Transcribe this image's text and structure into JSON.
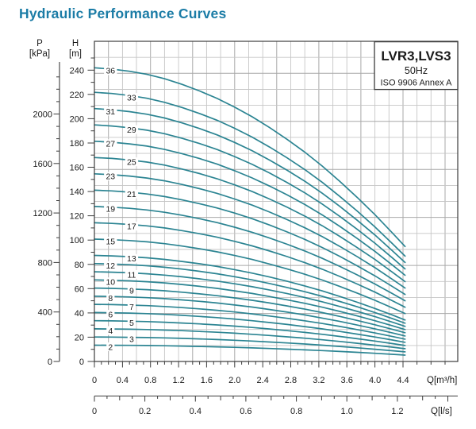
{
  "page": {
    "title": "Hydraulic Performance Curves"
  },
  "colors": {
    "title": "#1b7ca6",
    "curve": "#2b8492",
    "grid": "#c6c6c6",
    "grid_dark": "#a8a8a8",
    "axis": "#3c3c3c",
    "text": "#1a1a1a",
    "label_bg": "#ffffff"
  },
  "legend": {
    "model": "LVR3,LVS3",
    "frequency": "50Hz",
    "standard": "ISO 9906 Annex A"
  },
  "axes": {
    "pressure": {
      "label": "P",
      "unit": "[kPa]",
      "tick_labels": [
        0,
        400,
        800,
        1200,
        1600,
        2000
      ],
      "minor_step": 100,
      "minor_max": 2400
    },
    "head": {
      "label": "H",
      "unit": "[m]",
      "tick_labels": [
        0,
        20,
        40,
        60,
        80,
        100,
        120,
        140,
        160,
        180,
        200,
        220,
        240
      ],
      "minor_step": 10,
      "minor_max": 250
    },
    "flow_m3h": {
      "axis_label": "Q[m³/h]",
      "tick_labels": [
        0,
        0.4,
        0.8,
        1.2,
        1.6,
        2.0,
        2.4,
        2.8,
        3.2,
        3.6,
        4.0,
        4.4
      ],
      "minor_step": 0.1,
      "extra_minor_ticks": [
        4.6,
        4.8,
        5.0
      ]
    },
    "flow_ls": {
      "axis_label": "Q[l/s]",
      "tick_labels": [
        0,
        0.2,
        0.4,
        0.6,
        0.8,
        1.0,
        1.2
      ],
      "minor_step": 0.05,
      "minor_max": 1.4
    }
  },
  "chart_data": {
    "type": "line",
    "title": "LVR3,LVS3 50Hz ISO 9906 Annex A pump performance curves",
    "xlabel": "Q[m³/h]",
    "ylabel": "H[m]",
    "xlim": [
      0,
      5.18
    ],
    "ylim": [
      0,
      264
    ],
    "grid": true,
    "legend_position": "top-right",
    "stages": [
      2,
      3,
      4,
      5,
      6,
      7,
      8,
      9,
      10,
      11,
      12,
      13,
      15,
      17,
      19,
      21,
      23,
      25,
      27,
      29,
      31,
      33,
      36
    ],
    "x_m3h": [
      0,
      0.25,
      0.5,
      0.75,
      1.0,
      1.25,
      1.5,
      1.75,
      2.0,
      2.25,
      2.5,
      2.75,
      3.0,
      3.25,
      3.5,
      3.75,
      4.0,
      4.25,
      4.43
    ],
    "head_per_stage_m": [
      6.72,
      6.69,
      6.64,
      6.57,
      6.47,
      6.34,
      6.19,
      6.02,
      5.82,
      5.6,
      5.35,
      5.08,
      4.79,
      4.47,
      4.12,
      3.75,
      3.36,
      2.94,
      2.63
    ],
    "series_rule": "H[m] of each curve = stages × head_per_stage_m; curve label = number of stages",
    "label_columns_q": [
      0.23,
      0.53
    ]
  }
}
